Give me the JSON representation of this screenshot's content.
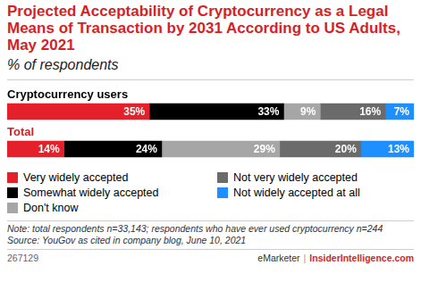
{
  "chart_data": {
    "type": "bar",
    "orientation": "horizontal",
    "stacked": true,
    "title": "Projected Acceptability of Cryptocurrency as a Legal Means of Transaction by 2031 According to US Adults, May 2021",
    "subtitle": "% of respondents",
    "categories": [
      "Cryptocurrency users",
      "Total"
    ],
    "series": [
      {
        "name": "Very widely accepted",
        "color": "#e4202a",
        "values": [
          35,
          14
        ],
        "value_labels": [
          "35%",
          "14%"
        ]
      },
      {
        "name": "Somewhat widely accepted",
        "color": "#000000",
        "values": [
          33,
          24
        ],
        "value_labels": [
          "33%",
          "24%"
        ]
      },
      {
        "name": "Don't know",
        "color": "#a6a6a6",
        "values": [
          9,
          29
        ],
        "value_labels": [
          "9%",
          "29%"
        ]
      },
      {
        "name": "Not very widely accepted",
        "color": "#6b6b6b",
        "values": [
          16,
          20
        ],
        "value_labels": [
          "16%",
          "20%"
        ]
      },
      {
        "name": "Not widely accepted at all",
        "color": "#1e8fff",
        "values": [
          7,
          13
        ],
        "value_labels": [
          "7%",
          "13%"
        ]
      }
    ],
    "xlim": [
      0,
      100
    ],
    "grid": false,
    "tick_labels": false,
    "data_labels": true,
    "legend": "bottom",
    "note": "Note: total respondents n=33,143; respondents who have ever used cryptocurrency n=244",
    "source": "Source: YouGov as cited in company blog, June 10, 2021",
    "footer": {
      "id": "267129",
      "brand": "eMarketer",
      "separator": "|",
      "site": "InsiderIntelligence.com"
    }
  }
}
